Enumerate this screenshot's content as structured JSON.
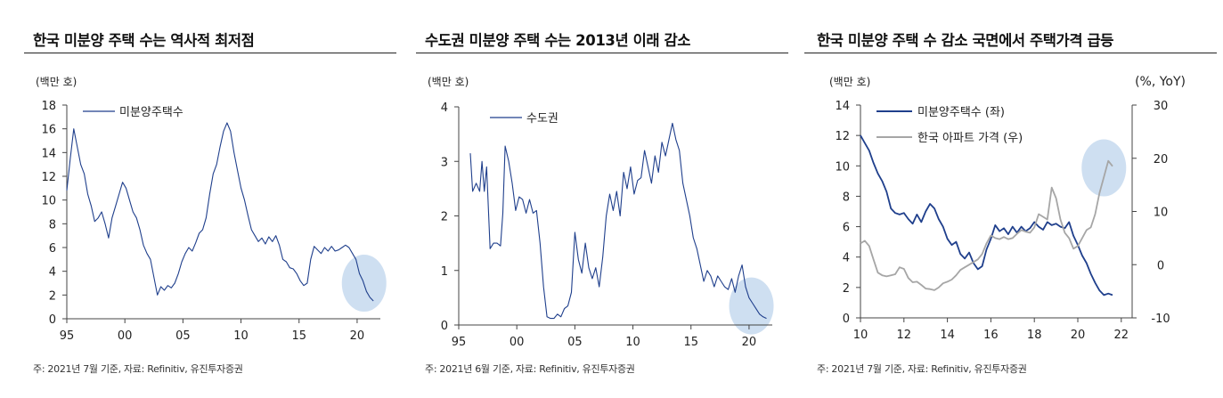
{
  "panels": [
    {
      "title": "한국 미분양 주택 수는 역사적 최저점",
      "source": "주: 2021년 7월 기준, 자료: Refinitiv, 유진투자증권"
    },
    {
      "title": "수도권 미분양 주택 수는 2013년 이래 감소",
      "source": "주: 2021년 6월 기준, 자료: Refinitiv, 유진투자증권"
    },
    {
      "title": "한국 미분양 주택 수 감소 국면에서 주택가격 급등",
      "source": "주: 2021년 7월 기준, 자료: Refinitiv, 유진투자증권"
    }
  ],
  "colors": {
    "navy": "#1f3f8c",
    "gray": "#a6a6a6",
    "highlight": "#c5d9ef"
  },
  "chart_data": [
    {
      "type": "line",
      "ylabel": "(백만 호)",
      "ylim": [
        0,
        18
      ],
      "yticks": [
        "0",
        "2",
        "4",
        "6",
        "8",
        "10",
        "12",
        "14",
        "16",
        "18"
      ],
      "xlim": [
        1995,
        2022
      ],
      "xticks": [
        {
          "v": 1995,
          "label": "95"
        },
        {
          "v": 2000,
          "label": "00"
        },
        {
          "v": 2005,
          "label": "05"
        },
        {
          "v": 2010,
          "label": "10"
        },
        {
          "v": 2015,
          "label": "15"
        },
        {
          "v": 2020,
          "label": "20"
        }
      ],
      "legend_position": "top-left",
      "highlight": {
        "x": 2020.6,
        "y": 3.0
      },
      "series": [
        {
          "name": "미분양주택수",
          "color": "navy",
          "x": [
            1995.0,
            1995.3,
            1995.6,
            1995.9,
            1996.2,
            1996.5,
            1996.8,
            1997.1,
            1997.4,
            1997.7,
            1998.0,
            1998.3,
            1998.6,
            1998.9,
            1999.2,
            1999.5,
            1999.8,
            2000.1,
            2000.4,
            2000.7,
            2001.0,
            2001.3,
            2001.6,
            2001.9,
            2002.2,
            2002.5,
            2002.8,
            2003.1,
            2003.4,
            2003.7,
            2004.0,
            2004.3,
            2004.6,
            2004.9,
            2005.2,
            2005.5,
            2005.8,
            2006.1,
            2006.4,
            2006.7,
            2007.0,
            2007.3,
            2007.6,
            2007.9,
            2008.2,
            2008.5,
            2008.8,
            2009.1,
            2009.4,
            2009.7,
            2010.0,
            2010.3,
            2010.6,
            2010.9,
            2011.2,
            2011.5,
            2011.8,
            2012.1,
            2012.4,
            2012.7,
            2013.0,
            2013.3,
            2013.6,
            2013.9,
            2014.2,
            2014.5,
            2014.8,
            2015.1,
            2015.4,
            2015.7,
            2016.0,
            2016.3,
            2016.6,
            2016.9,
            2017.2,
            2017.5,
            2017.8,
            2018.1,
            2018.4,
            2018.7,
            2019.0,
            2019.3,
            2019.6,
            2019.9,
            2020.2,
            2020.5,
            2020.8,
            2021.1,
            2021.4
          ],
          "y": [
            10.8,
            13.5,
            16.0,
            14.5,
            13.0,
            12.2,
            10.5,
            9.5,
            8.2,
            8.5,
            9.0,
            8.0,
            6.8,
            8.5,
            9.5,
            10.5,
            11.5,
            11.0,
            10.0,
            9.0,
            8.5,
            7.5,
            6.2,
            5.5,
            5.0,
            3.5,
            2.0,
            2.7,
            2.4,
            2.8,
            2.6,
            3.0,
            3.8,
            4.8,
            5.5,
            6.0,
            5.7,
            6.4,
            7.2,
            7.5,
            8.5,
            10.5,
            12.2,
            13.0,
            14.5,
            15.8,
            16.5,
            15.8,
            14.0,
            12.5,
            11.0,
            10.0,
            8.7,
            7.5,
            7.0,
            6.5,
            6.8,
            6.3,
            6.9,
            6.5,
            7.0,
            6.2,
            5.0,
            4.8,
            4.3,
            4.2,
            3.8,
            3.2,
            2.8,
            3.0,
            5.0,
            6.1,
            5.8,
            5.5,
            6.0,
            5.7,
            6.1,
            5.7,
            5.8,
            6.0,
            6.2,
            6.0,
            5.5,
            5.0,
            3.8,
            3.2,
            2.3,
            1.8,
            1.5
          ]
        }
      ]
    },
    {
      "type": "line",
      "ylabel": "(백만 호)",
      "ylim": [
        0,
        4
      ],
      "yticks": [
        "0",
        "1",
        "2",
        "3",
        "4"
      ],
      "xlim": [
        1995,
        2022
      ],
      "xticks": [
        {
          "v": 1995,
          "label": "95"
        },
        {
          "v": 2000,
          "label": "00"
        },
        {
          "v": 2005,
          "label": "05"
        },
        {
          "v": 2010,
          "label": "10"
        },
        {
          "v": 2015,
          "label": "15"
        },
        {
          "v": 2020,
          "label": "20"
        }
      ],
      "legend_position": "top-left",
      "highlight": {
        "x": 2020.2,
        "y": 0.35
      },
      "series": [
        {
          "name": "수도권",
          "color": "navy",
          "x": [
            1996.0,
            1996.2,
            1996.5,
            1996.8,
            1997.0,
            1997.2,
            1997.4,
            1997.7,
            1998.0,
            1998.3,
            1998.6,
            1998.8,
            1999.0,
            1999.3,
            1999.6,
            1999.9,
            2000.2,
            2000.5,
            2000.8,
            2001.1,
            2001.4,
            2001.7,
            2002.0,
            2002.3,
            2002.6,
            2002.9,
            2003.2,
            2003.5,
            2003.8,
            2004.1,
            2004.4,
            2004.7,
            2005.0,
            2005.3,
            2005.6,
            2005.9,
            2006.2,
            2006.5,
            2006.8,
            2007.1,
            2007.4,
            2007.7,
            2008.0,
            2008.3,
            2008.6,
            2008.9,
            2009.2,
            2009.5,
            2009.8,
            2010.1,
            2010.4,
            2010.7,
            2011.0,
            2011.3,
            2011.6,
            2011.9,
            2012.2,
            2012.5,
            2012.8,
            2013.1,
            2013.4,
            2013.7,
            2014.0,
            2014.3,
            2014.6,
            2014.9,
            2015.2,
            2015.5,
            2015.8,
            2016.1,
            2016.4,
            2016.7,
            2017.0,
            2017.3,
            2017.6,
            2017.9,
            2018.2,
            2018.5,
            2018.8,
            2019.1,
            2019.4,
            2019.7,
            2020.0,
            2020.3,
            2020.6,
            2020.9,
            2021.2,
            2021.5
          ],
          "y": [
            3.15,
            2.45,
            2.6,
            2.45,
            3.0,
            2.45,
            2.9,
            1.4,
            1.5,
            1.5,
            1.45,
            2.05,
            3.28,
            3.0,
            2.6,
            2.1,
            2.35,
            2.3,
            2.05,
            2.3,
            2.05,
            2.1,
            1.5,
            0.7,
            0.15,
            0.12,
            0.12,
            0.2,
            0.15,
            0.3,
            0.35,
            0.6,
            1.7,
            1.2,
            0.95,
            1.5,
            1.05,
            0.85,
            1.05,
            0.7,
            1.25,
            2.0,
            2.4,
            2.1,
            2.45,
            2.0,
            2.8,
            2.5,
            2.9,
            2.4,
            2.65,
            2.7,
            3.2,
            2.9,
            2.6,
            3.1,
            2.8,
            3.35,
            3.1,
            3.4,
            3.7,
            3.4,
            3.2,
            2.6,
            2.3,
            2.0,
            1.6,
            1.4,
            1.1,
            0.8,
            1.0,
            0.9,
            0.7,
            0.9,
            0.8,
            0.7,
            0.65,
            0.85,
            0.6,
            0.9,
            1.1,
            0.7,
            0.5,
            0.4,
            0.3,
            0.2,
            0.15,
            0.12
          ]
        }
      ]
    },
    {
      "type": "line",
      "ylabel": "(백만 호)",
      "y2label": "(%, YoY)",
      "ylim": [
        0,
        14
      ],
      "yticks": [
        "0",
        "2",
        "4",
        "6",
        "8",
        "10",
        "12",
        "14"
      ],
      "y2lim": [
        -10,
        30
      ],
      "y2ticks": [
        "-10",
        "0",
        "10",
        "20",
        "30"
      ],
      "xlim": [
        2010,
        2022.5
      ],
      "xticks": [
        {
          "v": 2010,
          "label": "10"
        },
        {
          "v": 2012,
          "label": "12"
        },
        {
          "v": 2014,
          "label": "14"
        },
        {
          "v": 2016,
          "label": "16"
        },
        {
          "v": 2018,
          "label": "18"
        },
        {
          "v": 2020,
          "label": "20"
        },
        {
          "v": 2022,
          "label": "22"
        }
      ],
      "legend_position": "top-left",
      "highlight": {
        "x": 2021.2,
        "y2": 18.2
      },
      "series": [
        {
          "name": "미분양주택수 (좌)",
          "color": "navy",
          "axis": "left",
          "x": [
            2010.0,
            2010.2,
            2010.4,
            2010.6,
            2010.8,
            2011.0,
            2011.2,
            2011.4,
            2011.6,
            2011.8,
            2012.0,
            2012.2,
            2012.4,
            2012.6,
            2012.8,
            2013.0,
            2013.2,
            2013.4,
            2013.6,
            2013.8,
            2014.0,
            2014.2,
            2014.4,
            2014.6,
            2014.8,
            2015.0,
            2015.2,
            2015.4,
            2015.6,
            2015.8,
            2016.0,
            2016.2,
            2016.4,
            2016.6,
            2016.8,
            2017.0,
            2017.2,
            2017.4,
            2017.6,
            2017.8,
            2018.0,
            2018.2,
            2018.4,
            2018.6,
            2018.8,
            2019.0,
            2019.2,
            2019.4,
            2019.6,
            2019.8,
            2020.0,
            2020.2,
            2020.4,
            2020.6,
            2020.8,
            2021.0,
            2021.2,
            2021.4,
            2021.6
          ],
          "y": [
            12.0,
            11.5,
            11.0,
            10.2,
            9.5,
            9.0,
            8.3,
            7.2,
            6.9,
            6.8,
            6.9,
            6.5,
            6.2,
            6.8,
            6.3,
            7.0,
            7.5,
            7.2,
            6.5,
            6.0,
            5.2,
            4.8,
            5.0,
            4.2,
            3.9,
            4.3,
            3.6,
            3.2,
            3.4,
            4.5,
            5.2,
            6.1,
            5.7,
            5.9,
            5.5,
            6.0,
            5.6,
            6.0,
            5.7,
            5.9,
            6.3,
            6.0,
            5.8,
            6.3,
            6.1,
            6.2,
            6.0,
            5.9,
            6.3,
            5.4,
            4.8,
            4.1,
            3.6,
            2.9,
            2.3,
            1.8,
            1.5,
            1.6,
            1.5
          ]
        },
        {
          "name": "한국 아파트 가격 (우)",
          "color": "gray",
          "axis": "right",
          "x": [
            2010.0,
            2010.2,
            2010.4,
            2010.6,
            2010.8,
            2011.0,
            2011.2,
            2011.4,
            2011.6,
            2011.8,
            2012.0,
            2012.2,
            2012.4,
            2012.6,
            2012.8,
            2013.0,
            2013.2,
            2013.4,
            2013.6,
            2013.8,
            2014.0,
            2014.2,
            2014.4,
            2014.6,
            2014.8,
            2015.0,
            2015.2,
            2015.4,
            2015.6,
            2015.8,
            2016.0,
            2016.2,
            2016.4,
            2016.6,
            2016.8,
            2017.0,
            2017.2,
            2017.4,
            2017.6,
            2017.8,
            2018.0,
            2018.2,
            2018.4,
            2018.6,
            2018.8,
            2019.0,
            2019.2,
            2019.4,
            2019.6,
            2019.8,
            2020.0,
            2020.2,
            2020.4,
            2020.6,
            2020.8,
            2021.0,
            2021.2,
            2021.4,
            2021.6
          ],
          "y": [
            4.0,
            4.5,
            3.5,
            1.0,
            -1.5,
            -2.0,
            -2.2,
            -2.0,
            -1.8,
            -0.5,
            -0.8,
            -2.5,
            -3.3,
            -3.2,
            -3.8,
            -4.5,
            -4.6,
            -4.8,
            -4.3,
            -3.5,
            -3.2,
            -2.8,
            -2.0,
            -1.0,
            -0.5,
            0.0,
            0.5,
            1.0,
            2.0,
            4.0,
            5.5,
            5.0,
            4.8,
            5.2,
            4.8,
            5.0,
            5.8,
            6.5,
            6.2,
            6.0,
            7.0,
            9.5,
            9.0,
            8.5,
            14.5,
            12.5,
            8.5,
            6.0,
            5.0,
            3.0,
            3.5,
            5.0,
            6.5,
            7.0,
            9.5,
            13.5,
            16.5,
            19.5,
            18.5
          ]
        }
      ]
    }
  ]
}
